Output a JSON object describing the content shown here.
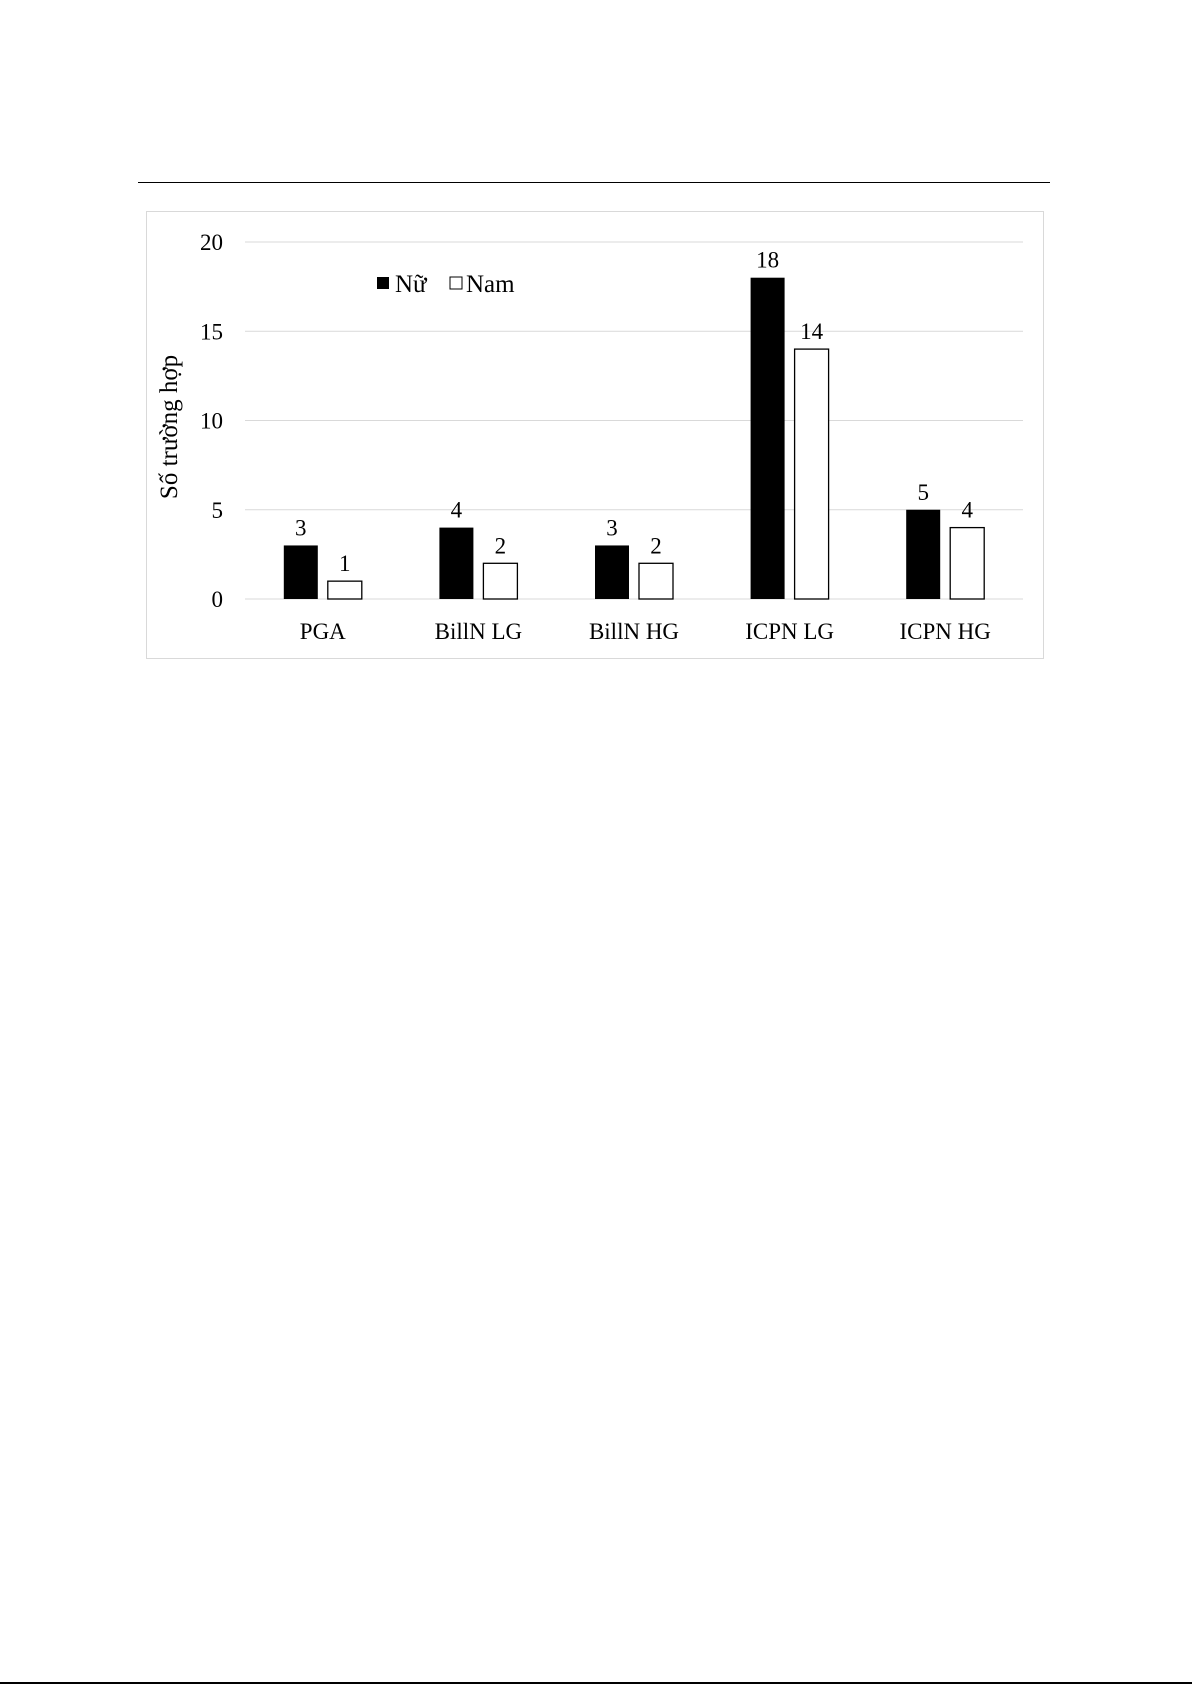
{
  "chart_data": {
    "type": "bar",
    "title": "",
    "xlabel": "",
    "ylabel": "Số trường hợp",
    "categories": [
      "PGA",
      "BillN LG",
      "BillN HG",
      "ICPN LG",
      "ICPN HG"
    ],
    "series": [
      {
        "name": "Nữ",
        "values": [
          3,
          4,
          3,
          18,
          5
        ],
        "color": "#000000",
        "fill": "filled"
      },
      {
        "name": "Nam",
        "values": [
          1,
          2,
          2,
          14,
          4
        ],
        "color": "#ffffff",
        "fill": "outline"
      }
    ],
    "ylim": [
      0,
      20
    ],
    "yticks": [
      0,
      5,
      10,
      15,
      20
    ],
    "grid": true,
    "legend": "top-left",
    "data_labels": true
  }
}
